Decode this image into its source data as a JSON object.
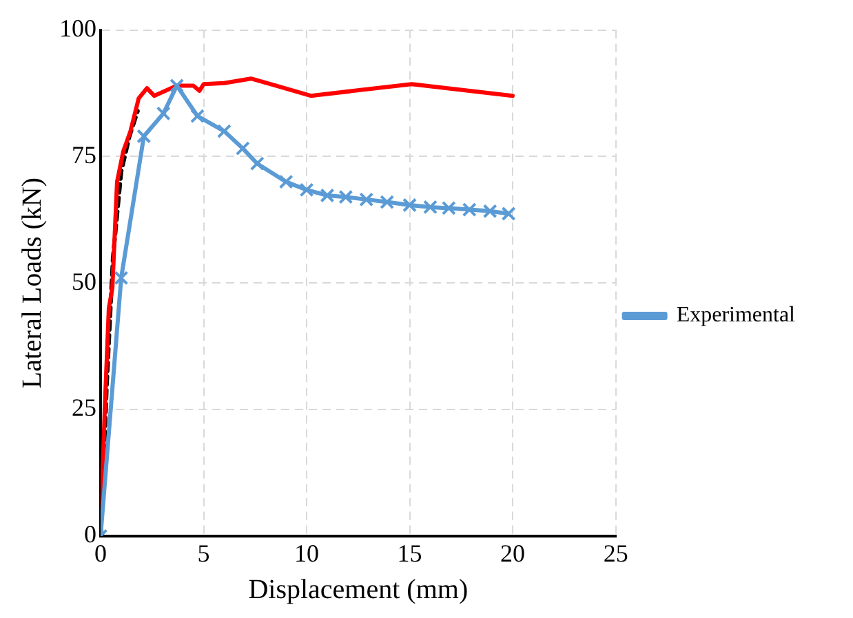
{
  "chart_data": {
    "type": "line",
    "xlabel": "Displacement (mm)",
    "ylabel": "Lateral Loads (kN)",
    "xlim": [
      0,
      25
    ],
    "xticks": [
      0,
      5,
      10,
      15,
      20,
      25
    ],
    "ylim": [
      0,
      100
    ],
    "yticks": [
      0,
      25,
      50,
      75,
      100
    ],
    "grid": true,
    "legend": "right",
    "series": [
      {
        "name": "Experimental",
        "color": "#5b9bd5",
        "marker": "cross",
        "line_style": "solid",
        "x": [
          0,
          1,
          2.1,
          3.05,
          3.7,
          4.7,
          6,
          6.9,
          7.6,
          9,
          10,
          11,
          11.9,
          12.9,
          13.9,
          15,
          16,
          16.9,
          17.9,
          18.9,
          19.8
        ],
        "values": [
          0,
          51,
          79,
          83.5,
          89,
          83,
          80,
          76.6,
          73.6,
          70,
          68.4,
          67.3,
          67,
          66.5,
          66,
          65.4,
          65,
          64.8,
          64.5,
          64.2,
          63.7
        ]
      },
      {
        "color": "#ff0000",
        "marker": "none",
        "line_style": "solid",
        "x": [
          0,
          0.2,
          0.4,
          0.57,
          0.8,
          1.1,
          1.45,
          1.85,
          2.25,
          2.6,
          3.7,
          4.5,
          4.8,
          5,
          6,
          7.3,
          8.5,
          10.2,
          15.1,
          20
        ],
        "values": [
          0,
          25,
          45,
          49,
          70,
          76,
          80,
          86.5,
          88.5,
          87,
          89,
          89,
          88,
          89.3,
          89.5,
          90.4,
          89,
          87,
          89.3,
          87
        ]
      },
      {
        "color": "#000000",
        "marker": "none",
        "line_style": "dashed",
        "x": [
          0,
          0.3,
          0.6,
          1,
          1.4,
          1.8
        ],
        "values": [
          0,
          30,
          55,
          72,
          79,
          84
        ]
      }
    ]
  }
}
